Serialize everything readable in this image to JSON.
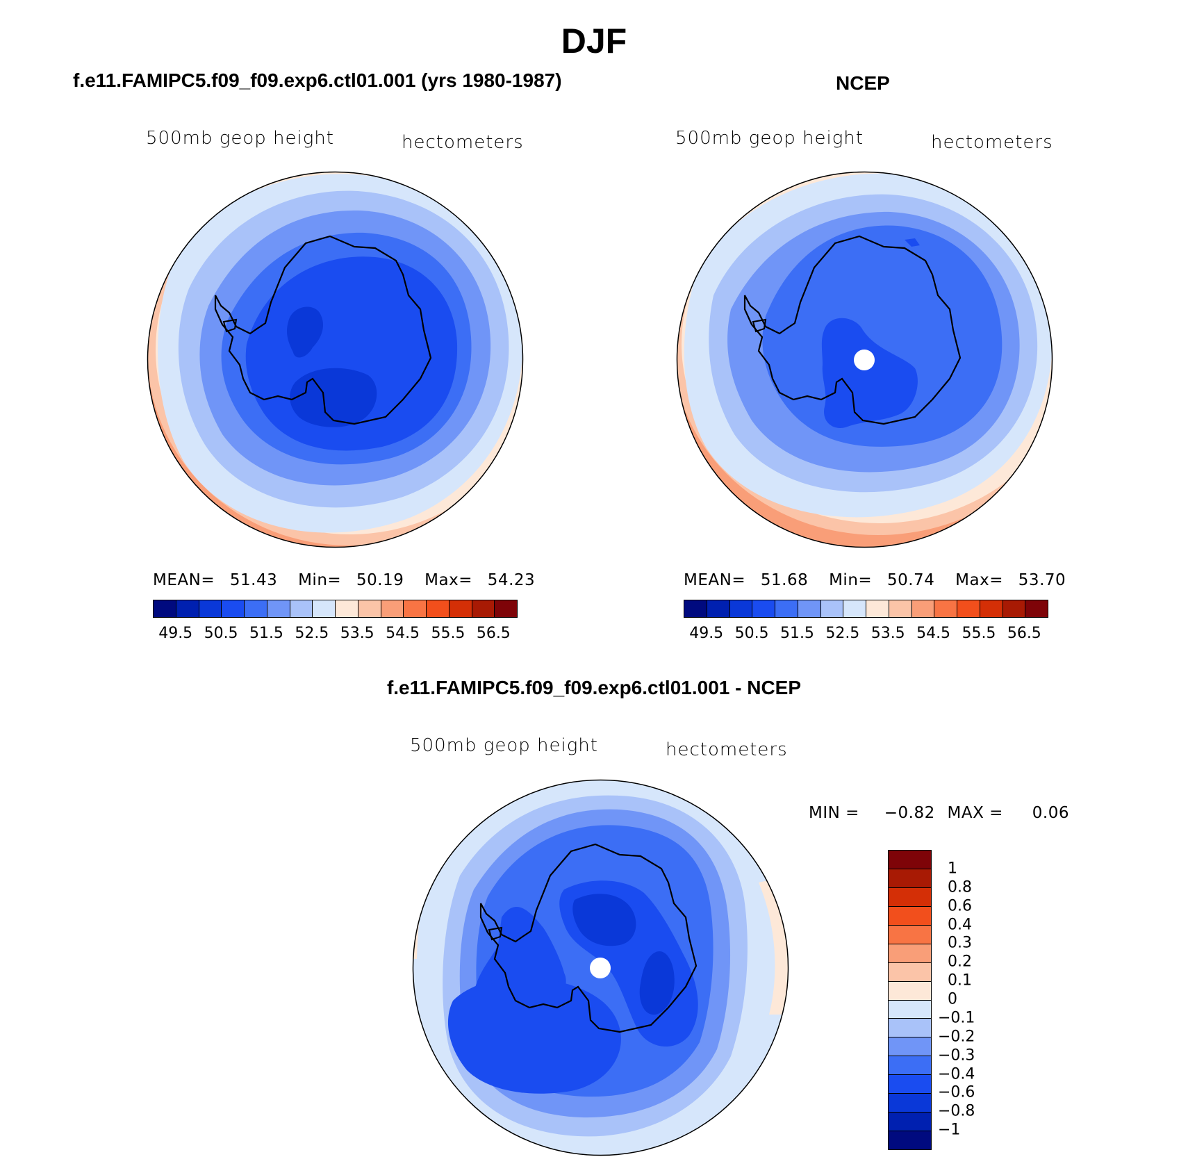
{
  "page_title": "DJF",
  "panels": [
    {
      "title": "f.e11.FAMIPC5.f09_f09.exp6.ctl01.001 (yrs 1980-1987)",
      "variable": "500mb geop height",
      "units": "hectometers",
      "stats": {
        "mean_label": "MEAN=",
        "mean": "51.43",
        "min_label": "Min=",
        "min": "50.19",
        "max_label": "Max=",
        "max": "54.23"
      },
      "colorbar_labels": [
        "49.5",
        "50.5",
        "51.5",
        "52.5",
        "53.5",
        "54.5",
        "55.5",
        "56.5"
      ]
    },
    {
      "title": "NCEP",
      "variable": "500mb geop height",
      "units": "hectometers",
      "stats": {
        "mean_label": "MEAN=",
        "mean": "51.68",
        "min_label": "Min=",
        "min": "50.74",
        "max_label": "Max=",
        "max": "53.70"
      },
      "colorbar_labels": [
        "49.5",
        "50.5",
        "51.5",
        "52.5",
        "53.5",
        "54.5",
        "55.5",
        "56.5"
      ]
    },
    {
      "title": "f.e11.FAMIPC5.f09_f09.exp6.ctl01.001 - NCEP",
      "variable": "500mb geop height",
      "units": "hectometers",
      "stats": {
        "min_label": "MIN =",
        "min": "−0.82",
        "max_label": "MAX =",
        "max": "0.06"
      },
      "colorbar_labels": [
        "1",
        "0.8",
        "0.6",
        "0.4",
        "0.3",
        "0.2",
        "0.1",
        "0",
        "−0.1",
        "−0.2",
        "−0.3",
        "−0.4",
        "−0.6",
        "−0.8",
        "−1"
      ]
    }
  ],
  "colors": {
    "palette": [
      "#000a7f",
      "#0020b0",
      "#0a38d8",
      "#1a4cf0",
      "#3c6ef5",
      "#7095f7",
      "#a9c2f9",
      "#d6e6fb",
      "#fde8d8",
      "#fbc4a8",
      "#f99e78",
      "#f87444",
      "#f24f1c",
      "#d42f06",
      "#a81a04",
      "#7e0408"
    ],
    "diff_palette_top_to_bottom": [
      "#7e0408",
      "#a81a04",
      "#d42f06",
      "#f24f1c",
      "#f87444",
      "#f99e78",
      "#fbc4a8",
      "#fde8d8",
      "#d6e6fb",
      "#a9c2f9",
      "#7095f7",
      "#3c6ef5",
      "#1a4cf0",
      "#0a38d8",
      "#0020b0",
      "#000a7f"
    ]
  },
  "map_markers": {
    "pole_marker": "white-circle"
  }
}
